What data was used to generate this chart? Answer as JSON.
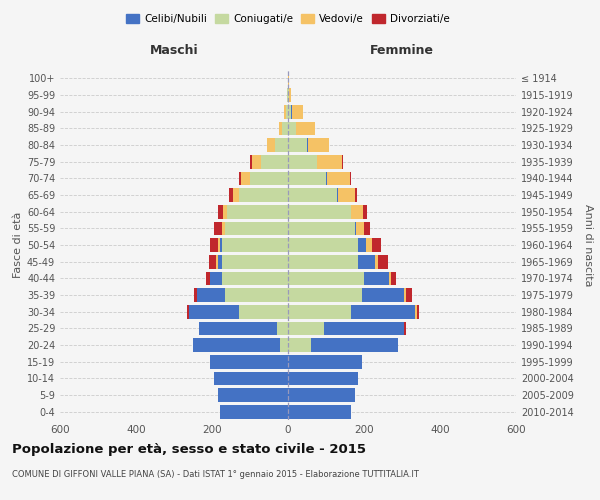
{
  "age_groups": [
    "0-4",
    "5-9",
    "10-14",
    "15-19",
    "20-24",
    "25-29",
    "30-34",
    "35-39",
    "40-44",
    "45-49",
    "50-54",
    "55-59",
    "60-64",
    "65-69",
    "70-74",
    "75-79",
    "80-84",
    "85-89",
    "90-94",
    "95-99",
    "100+"
  ],
  "birth_years": [
    "2010-2014",
    "2005-2009",
    "2000-2004",
    "1995-1999",
    "1990-1994",
    "1985-1989",
    "1980-1984",
    "1975-1979",
    "1970-1974",
    "1965-1969",
    "1960-1964",
    "1955-1959",
    "1950-1954",
    "1945-1949",
    "1940-1944",
    "1935-1939",
    "1930-1934",
    "1925-1929",
    "1920-1924",
    "1915-1919",
    "≤ 1914"
  ],
  "male_celibe": [
    180,
    185,
    195,
    205,
    230,
    205,
    130,
    75,
    30,
    10,
    5,
    0,
    0,
    0,
    0,
    0,
    0,
    0,
    0,
    0,
    0
  ],
  "male_coniugato": [
    0,
    0,
    0,
    0,
    20,
    30,
    130,
    165,
    175,
    175,
    175,
    165,
    160,
    130,
    100,
    70,
    35,
    15,
    5,
    2,
    0
  ],
  "male_vedovo": [
    0,
    0,
    0,
    0,
    0,
    0,
    0,
    0,
    0,
    5,
    5,
    10,
    10,
    15,
    25,
    25,
    20,
    10,
    5,
    0,
    0
  ],
  "male_divorziato": [
    0,
    0,
    0,
    0,
    0,
    0,
    5,
    8,
    12,
    18,
    20,
    20,
    15,
    10,
    5,
    5,
    0,
    0,
    0,
    0,
    0
  ],
  "female_celibe": [
    165,
    175,
    185,
    195,
    230,
    210,
    170,
    110,
    65,
    45,
    20,
    5,
    2,
    2,
    2,
    2,
    2,
    2,
    2,
    0,
    0
  ],
  "female_coniugato": [
    0,
    0,
    0,
    0,
    60,
    95,
    165,
    195,
    200,
    185,
    185,
    175,
    165,
    130,
    100,
    75,
    50,
    20,
    8,
    2,
    0
  ],
  "female_vedovo": [
    0,
    0,
    0,
    0,
    0,
    0,
    5,
    5,
    5,
    8,
    15,
    20,
    30,
    45,
    60,
    65,
    55,
    50,
    30,
    5,
    2
  ],
  "female_divorziato": [
    0,
    0,
    0,
    0,
    0,
    5,
    5,
    15,
    15,
    25,
    25,
    15,
    10,
    5,
    5,
    2,
    0,
    0,
    0,
    0,
    0
  ],
  "color_celibe": "#4472c4",
  "color_coniugato": "#c5d9a0",
  "color_vedovo": "#f5c265",
  "color_divorziato": "#c0272d",
  "title": "Popolazione per età, sesso e stato civile - 2015",
  "subtitle": "COMUNE DI GIFFONI VALLE PIANA (SA) - Dati ISTAT 1° gennaio 2015 - Elaborazione TUTTITALIA.IT",
  "xlabel_left": "Maschi",
  "xlabel_right": "Femmine",
  "ylabel_left": "Fasce di età",
  "ylabel_right": "Anni di nascita",
  "xlim": 600,
  "bg_color": "#f5f5f5",
  "grid_color": "#cccccc"
}
